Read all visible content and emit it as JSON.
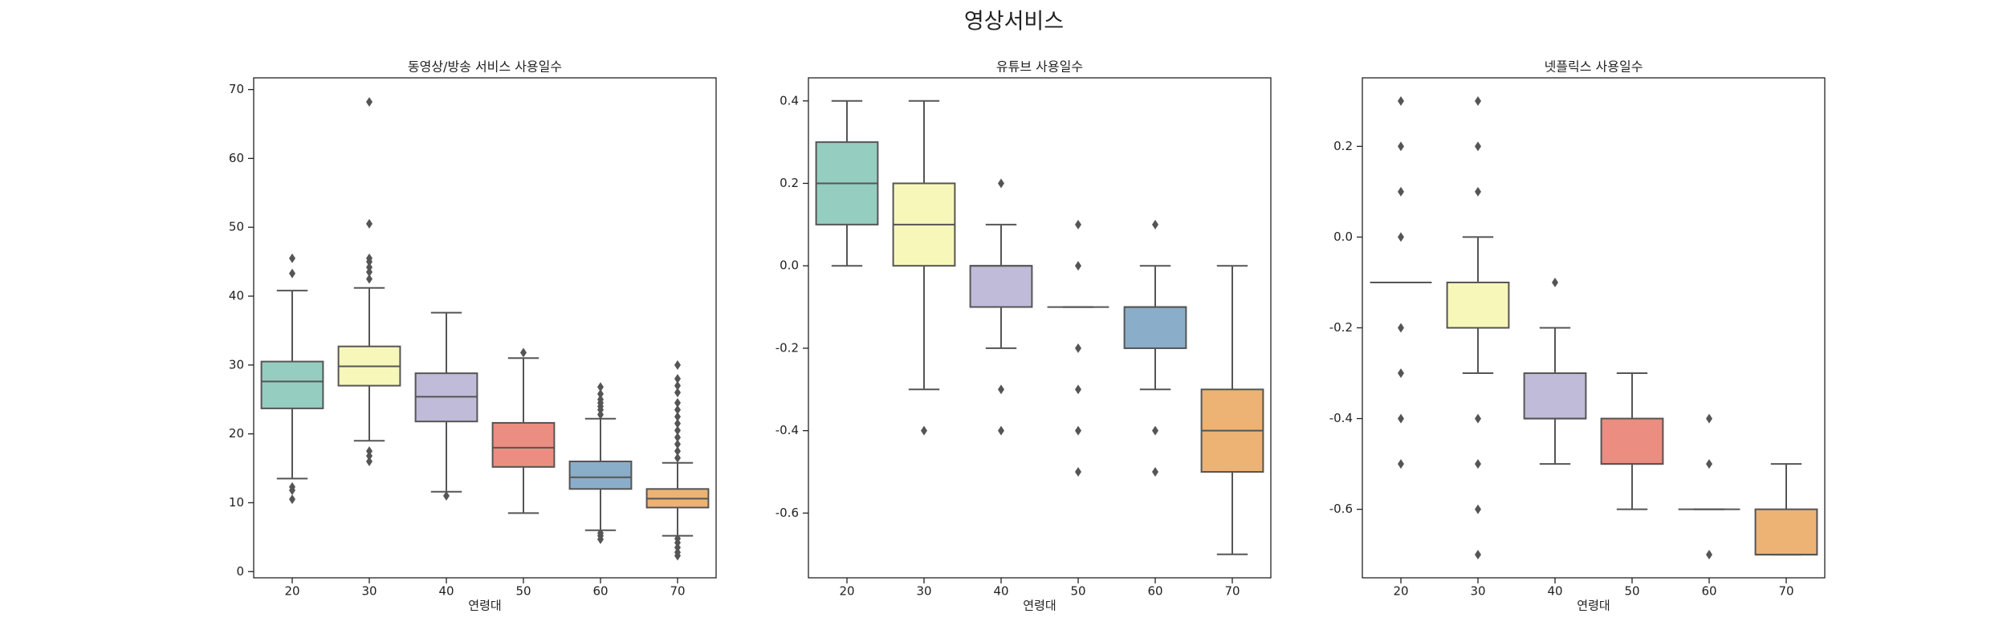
{
  "title": "영상서비스",
  "chart_data": [
    {
      "type": "box",
      "title": "동영상/방송 서비스 사용일수",
      "xlabel": "연령대",
      "categories": [
        "20",
        "30",
        "40",
        "50",
        "60",
        "70"
      ],
      "colors": [
        "#96cdc1",
        "#f7f7ba",
        "#c0bbd8",
        "#eb8d80",
        "#8aaec9",
        "#ecb374"
      ],
      "ylim": [
        -0.9,
        71.7
      ],
      "yticks": [
        0,
        10,
        20,
        30,
        40,
        50,
        60,
        70
      ],
      "boxes": [
        {
          "min": 13.5,
          "q1": 23.7,
          "median": 27.6,
          "q3": 30.5,
          "max": 40.8,
          "outliers": [
            10.5,
            11.8,
            12.3,
            43.3,
            45.5
          ]
        },
        {
          "min": 19,
          "q1": 27,
          "median": 29.8,
          "q3": 32.7,
          "max": 41.2,
          "outliers": [
            16,
            16.8,
            17.5,
            42.5,
            43.5,
            44.2,
            45,
            45.5,
            50.5,
            68.2
          ]
        },
        {
          "min": 11.6,
          "q1": 21.8,
          "median": 25.4,
          "q3": 28.8,
          "max": 37.6,
          "outliers": [
            11
          ]
        },
        {
          "min": 8.5,
          "q1": 15.2,
          "median": 18,
          "q3": 21.6,
          "max": 31,
          "outliers": [
            31.8
          ]
        },
        {
          "min": 6,
          "q1": 12,
          "median": 13.7,
          "q3": 16,
          "max": 22.2,
          "outliers": [
            4.7,
            5.2,
            5.6,
            22.8,
            23.5,
            24,
            24.5,
            25,
            25.8,
            26.8
          ]
        },
        {
          "min": 5.2,
          "q1": 9.3,
          "median": 10.6,
          "q3": 12,
          "max": 15.8,
          "outliers": [
            2.3,
            2.8,
            3.5,
            4.2,
            4.8,
            16.5,
            17.5,
            18.5,
            19.5,
            20.5,
            21.5,
            22.5,
            23.5,
            24.5,
            26,
            27,
            28,
            30
          ]
        }
      ]
    },
    {
      "type": "box",
      "title": "유튜브 사용일수",
      "xlabel": "연령대",
      "categories": [
        "20",
        "30",
        "40",
        "50",
        "60",
        "70"
      ],
      "colors": [
        "#96cdc1",
        "#f7f7ba",
        "#c0bbd8",
        "#eb8d80",
        "#8aaec9",
        "#ecb374"
      ],
      "ylim": [
        -0.757,
        0.456
      ],
      "yticks": [
        -0.6,
        -0.4,
        -0.2,
        {
          "value": 0,
          "label": "0.0"
        },
        0.2,
        0.4
      ],
      "boxes": [
        {
          "min": 0,
          "q1": 0.1,
          "median": 0.2,
          "q3": 0.3,
          "max": 0.4,
          "outliers": []
        },
        {
          "min": -0.3,
          "q1": 0,
          "median": 0.1,
          "q3": 0.2,
          "max": 0.4,
          "outliers": [
            -0.4
          ]
        },
        {
          "min": -0.2,
          "q1": -0.1,
          "median": 0,
          "q3": 0,
          "max": 0.1,
          "outliers": [
            -0.4,
            -0.3,
            0.2
          ]
        },
        {
          "min": -0.1,
          "q1": -0.1,
          "median": -0.1,
          "q3": -0.1,
          "max": -0.1,
          "outliers": [
            -0.5,
            -0.4,
            -0.3,
            -0.2,
            0,
            0.1
          ]
        },
        {
          "min": -0.3,
          "q1": -0.2,
          "median": -0.1,
          "q3": -0.1,
          "max": 0,
          "outliers": [
            -0.5,
            -0.4,
            0.1
          ]
        },
        {
          "min": -0.7,
          "q1": -0.5,
          "median": -0.4,
          "q3": -0.3,
          "max": 0,
          "outliers": []
        }
      ]
    },
    {
      "type": "box",
      "title": "넷플릭스 사용일수",
      "xlabel": "연령대",
      "categories": [
        "20",
        "30",
        "40",
        "50",
        "60",
        "70"
      ],
      "colors": [
        "#96cdc1",
        "#f7f7ba",
        "#c0bbd8",
        "#eb8d80",
        "#8aaec9",
        "#ecb374"
      ],
      "ylim": [
        -0.751,
        0.351
      ],
      "yticks": [
        -0.6,
        -0.4,
        -0.2,
        {
          "value": 0,
          "label": "0.0"
        },
        0.2
      ],
      "boxes": [
        {
          "min": -0.1,
          "q1": -0.1,
          "median": -0.1,
          "q3": -0.1,
          "max": -0.1,
          "outliers": [
            -0.5,
            -0.4,
            -0.3,
            -0.2,
            0,
            0.1,
            0.2,
            0.3
          ]
        },
        {
          "min": -0.3,
          "q1": -0.2,
          "median": -0.2,
          "q3": -0.1,
          "max": 0,
          "outliers": [
            -0.7,
            -0.6,
            -0.5,
            -0.4,
            0.1,
            0.2,
            0.3
          ]
        },
        {
          "min": -0.5,
          "q1": -0.4,
          "median": -0.4,
          "q3": -0.3,
          "max": -0.2,
          "outliers": [
            -0.1
          ]
        },
        {
          "min": -0.6,
          "q1": -0.5,
          "median": -0.5,
          "q3": -0.4,
          "max": -0.3,
          "outliers": []
        },
        {
          "min": -0.6,
          "q1": -0.6,
          "median": -0.6,
          "q3": -0.6,
          "max": -0.6,
          "outliers": [
            -0.7,
            -0.5,
            -0.4
          ]
        },
        {
          "min": -0.7,
          "q1": -0.7,
          "median": -0.7,
          "q3": -0.6,
          "max": -0.5,
          "outliers": []
        }
      ]
    }
  ]
}
